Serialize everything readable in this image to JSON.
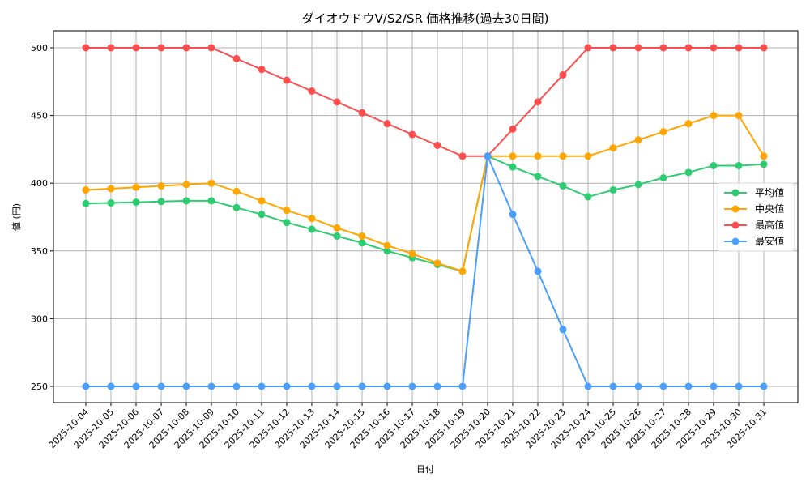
{
  "chart_data": {
    "type": "line",
    "title": "ダイオウドウV/S2/SR 価格推移(過去30日間)",
    "xlabel": "日付",
    "ylabel": "値 (円)",
    "ylim": [
      237,
      513
    ],
    "yticks": [
      250,
      300,
      350,
      400,
      450,
      500
    ],
    "grid": true,
    "legend_position": "center right",
    "categories": [
      "2025-10-04",
      "2025-10-05",
      "2025-10-06",
      "2025-10-07",
      "2025-10-08",
      "2025-10-09",
      "2025-10-10",
      "2025-10-11",
      "2025-10-12",
      "2025-10-13",
      "2025-10-14",
      "2025-10-15",
      "2025-10-16",
      "2025-10-17",
      "2025-10-18",
      "2025-10-19",
      "2025-10-20",
      "2025-10-21",
      "2025-10-22",
      "2025-10-23",
      "2025-10-24",
      "2025-10-25",
      "2025-10-26",
      "2025-10-27",
      "2025-10-28",
      "2025-10-29",
      "2025-10-30",
      "2025-10-31"
    ],
    "series": [
      {
        "name": "平均値",
        "color": "#2ecc71",
        "values": [
          385,
          385.5,
          386,
          386.5,
          387,
          387,
          382,
          377,
          371,
          366,
          361,
          356,
          350,
          345,
          340,
          335,
          420,
          412,
          405,
          398,
          390,
          395,
          399,
          404,
          408,
          413,
          413,
          414
        ]
      },
      {
        "name": "中央値",
        "color": "#ffa500",
        "values": [
          395,
          396,
          397,
          398,
          399,
          400,
          394,
          387,
          380,
          374,
          367,
          361,
          354,
          348,
          341,
          335,
          420,
          420,
          420,
          420,
          420,
          426,
          432,
          438,
          444,
          450,
          450,
          420
        ]
      },
      {
        "name": "最高値",
        "color": "#ff4d4d",
        "values": [
          500,
          500,
          500,
          500,
          500,
          500,
          492,
          484,
          476,
          468,
          460,
          452,
          444,
          436,
          428,
          420,
          420,
          440,
          460,
          480,
          500,
          500,
          500,
          500,
          500,
          500,
          500,
          500
        ]
      },
      {
        "name": "最安値",
        "color": "#4a9eff",
        "values": [
          250,
          250,
          250,
          250,
          250,
          250,
          250,
          250,
          250,
          250,
          250,
          250,
          250,
          250,
          250,
          250,
          420,
          377,
          335,
          292,
          250,
          250,
          250,
          250,
          250,
          250,
          250,
          250
        ]
      }
    ]
  }
}
